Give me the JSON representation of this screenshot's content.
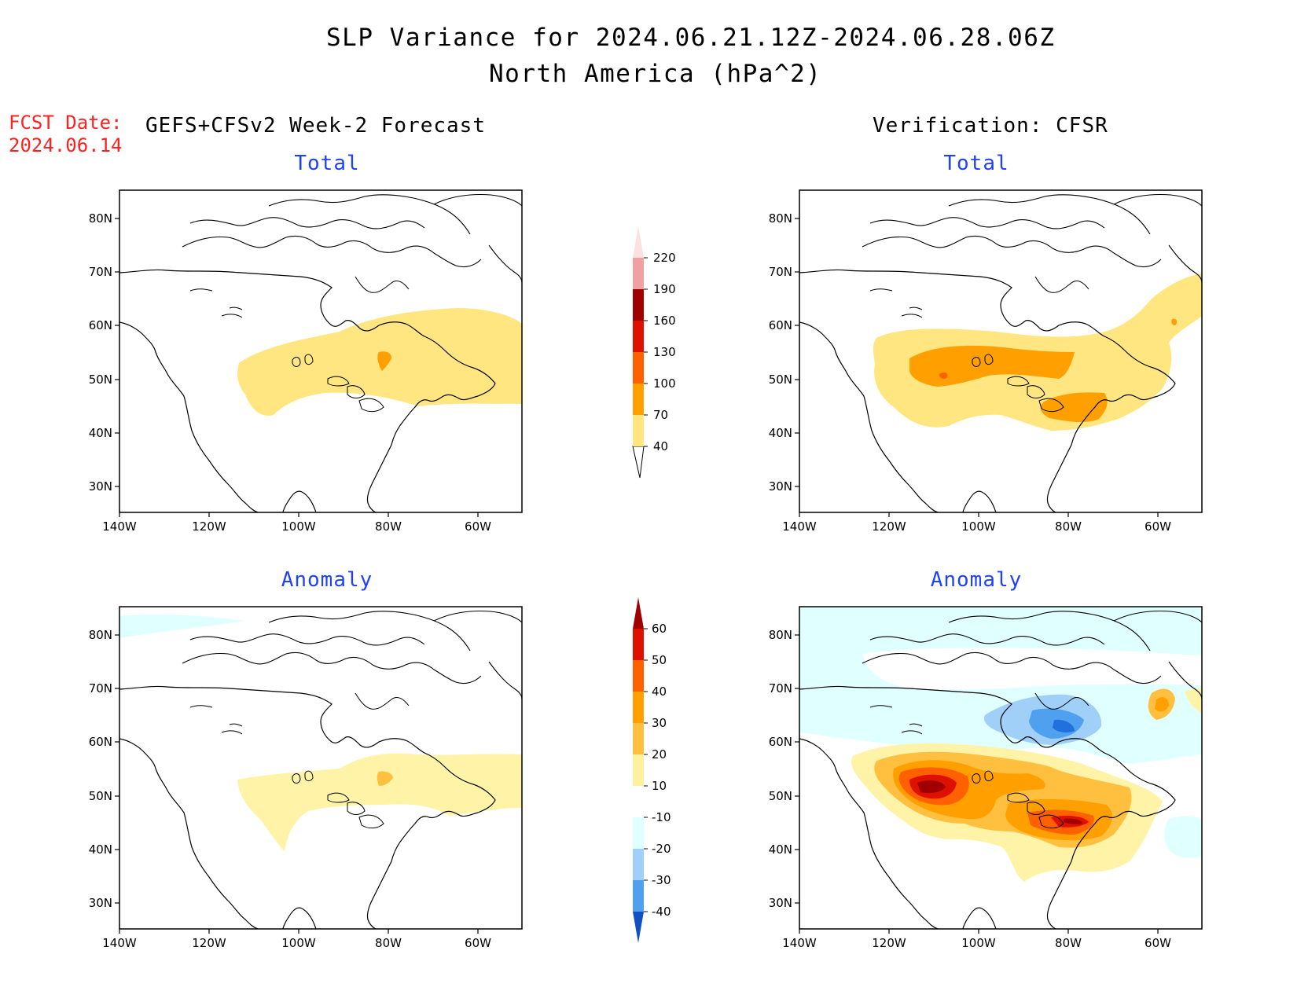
{
  "header": {
    "title_line1": "SLP Variance for 2024.06.21.12Z-2024.06.28.06Z",
    "title_line2": "North America (hPa^2)",
    "fcst_label": "FCST Date:",
    "fcst_date": "2024.06.14"
  },
  "columns": {
    "left": "GEFS+CFSv2 Week-2 Forecast",
    "right": "Verification: CFSR"
  },
  "panels": {
    "total_label": "Total",
    "anomaly_label": "Anomaly"
  },
  "axes": {
    "lat_labels": [
      "80N",
      "70N",
      "60N",
      "50N",
      "40N",
      "30N"
    ],
    "lon_labels": [
      "140W",
      "120W",
      "100W",
      "80W",
      "60W"
    ]
  },
  "colorbar_total": {
    "levels": [
      "40",
      "70",
      "100",
      "130",
      "160",
      "190",
      "220"
    ],
    "colors": [
      "#ffe680",
      "#ffa000",
      "#ff6000",
      "#e01000",
      "#a00000",
      "#f0a0a0",
      "#ffe0e0"
    ]
  },
  "colorbar_anomaly": {
    "levels": [
      "60",
      "50",
      "40",
      "30",
      "20",
      "10",
      "-10",
      "-20",
      "-30",
      "-40"
    ],
    "colors": [
      "#a00000",
      "#e01000",
      "#ff6000",
      "#ffa000",
      "#ffc040",
      "#fff0a0",
      "#ffffff",
      "#e0ffff",
      "#a0d0f8",
      "#50a0f0",
      "#2070e0",
      "#1050c0"
    ]
  },
  "shading_colors": {
    "yellow_light": "#fff3a8",
    "yellow": "#ffe680",
    "orange_light": "#ffc040",
    "orange": "#ffa000",
    "orange_dark": "#ff6000",
    "red": "#e01000",
    "dark_red": "#a00000",
    "cyan_light": "#e0ffff",
    "blue_light": "#a0d0f8",
    "blue": "#50a0f0",
    "blue_dark": "#2070e0"
  }
}
